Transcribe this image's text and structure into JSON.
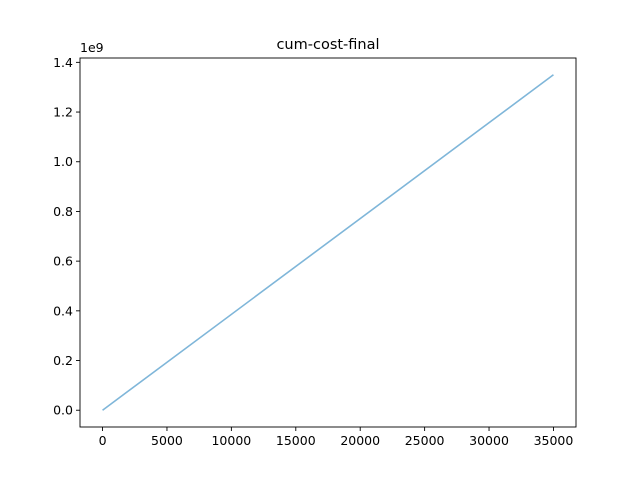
{
  "chart_data": {
    "type": "line",
    "title": "cum-cost-final",
    "xlabel": "",
    "ylabel": "",
    "y_offset_label": "1e9",
    "xlim": [
      -1750,
      36750
    ],
    "ylim": [
      -0.0675,
      1.4175
    ],
    "x_ticks": [
      0,
      5000,
      10000,
      15000,
      20000,
      25000,
      30000,
      35000
    ],
    "x_tick_labels": [
      "0",
      "5000",
      "10000",
      "15000",
      "20000",
      "25000",
      "30000",
      "35000"
    ],
    "y_ticks": [
      0.0,
      0.2,
      0.4,
      0.6,
      0.8,
      1.0,
      1.2,
      1.4
    ],
    "y_tick_labels": [
      "0.0",
      "0.2",
      "0.4",
      "0.6",
      "0.8",
      "1.0",
      "1.2",
      "1.4"
    ],
    "grid": false,
    "legend": "none",
    "colors": {
      "series": "#7fb6d9",
      "axes": "#000000"
    },
    "series": [
      {
        "x": [
          0,
          35000
        ],
        "y": [
          0.0,
          1.35
        ]
      }
    ]
  }
}
